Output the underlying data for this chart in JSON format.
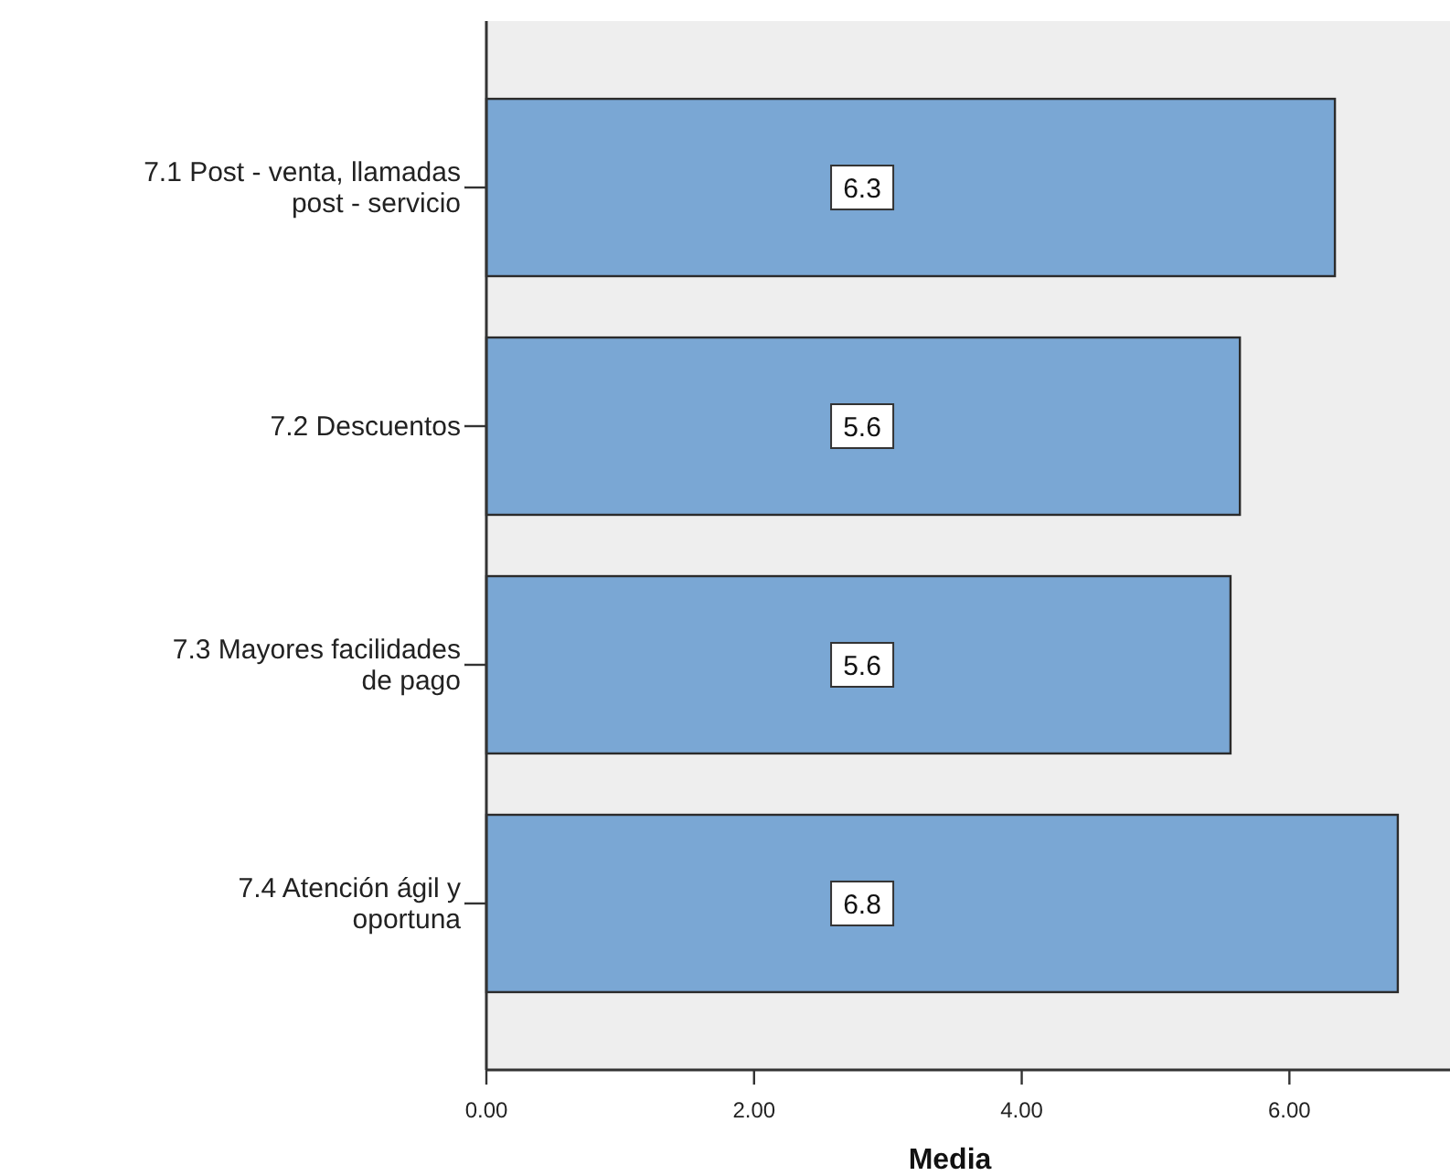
{
  "chart_data": {
    "type": "bar",
    "orientation": "horizontal",
    "xlabel": "Media",
    "categories": [
      "7.1 Post - venta, llamadas\npost - servicio",
      "7.2 Descuentos",
      "7.3 Mayores facilidades\nde pago",
      "7.4 Atención ágil y\noportuna"
    ],
    "values": [
      6.34,
      5.63,
      5.56,
      6.81
    ],
    "value_labels": [
      "6.3",
      "5.6",
      "5.6",
      "6.8"
    ],
    "color": "#7aa7d4",
    "xlim": [
      0,
      7.2
    ],
    "xticks": [
      {
        "value": 0,
        "label": "0.00"
      },
      {
        "value": 2,
        "label": "2.00"
      },
      {
        "value": 4,
        "label": "4.00"
      },
      {
        "value": 6,
        "label": "6.00"
      }
    ],
    "grid": false
  }
}
